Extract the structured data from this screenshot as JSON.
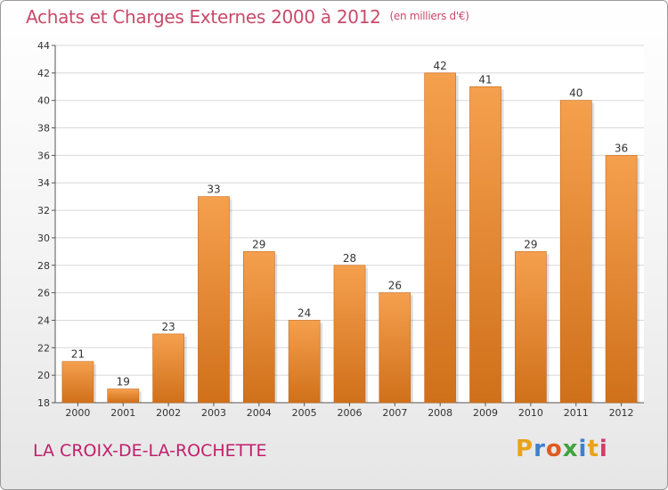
{
  "header": {
    "title": "Achats et Charges Externes 2000 à 2012",
    "unit": "(en milliers d'€)"
  },
  "footer": {
    "commune": "LA CROIX-DE-LA-ROCHETTE",
    "logo_letters": [
      "P",
      "r",
      "o",
      "x",
      "i",
      "t",
      "i"
    ],
    "logo_colors": [
      "#e8a31a",
      "#3f7fd0",
      "#e05a1e",
      "#3fa33f",
      "#3f7fd0",
      "#e8a31a",
      "#d43a6a"
    ]
  },
  "chart_data": {
    "type": "bar",
    "categories": [
      "2000",
      "2001",
      "2002",
      "2003",
      "2004",
      "2005",
      "2006",
      "2007",
      "2008",
      "2009",
      "2010",
      "2011",
      "2012"
    ],
    "values": [
      21,
      19,
      23,
      33,
      29,
      24,
      28,
      26,
      42,
      41,
      29,
      40,
      36
    ],
    "data_labels": [
      "21",
      "19",
      "23",
      "33",
      "29",
      "24",
      "28",
      "26",
      "42",
      "41",
      "29",
      "40",
      "36"
    ],
    "yticks": [
      "18",
      "20",
      "22",
      "24",
      "26",
      "28",
      "30",
      "32",
      "34",
      "36",
      "38",
      "40",
      "42",
      "44"
    ],
    "ylim": [
      18,
      44
    ],
    "ytick_step": 2,
    "grid": true,
    "colors": {
      "bar_top": "#f5a04e",
      "bar_bottom": "#d0701a",
      "grid": "#d8d8d8",
      "axis": "#555555"
    }
  }
}
